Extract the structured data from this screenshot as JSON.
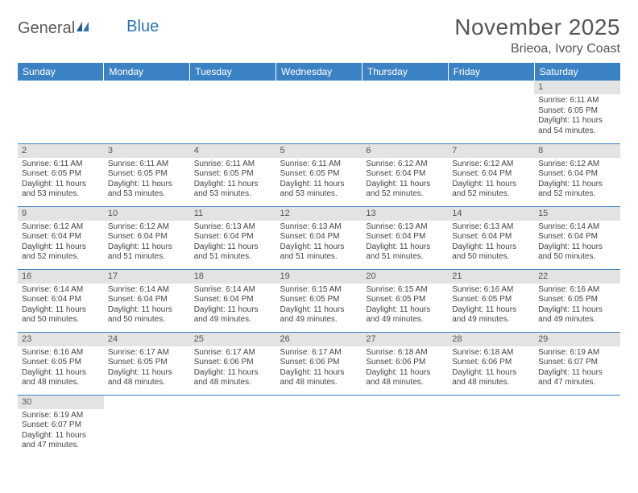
{
  "logo": {
    "word1": "General",
    "word2": "Blue"
  },
  "title": "November 2025",
  "location": "Brieoa, Ivory Coast",
  "colors": {
    "header_bg": "#3b82c4",
    "header_text": "#ffffff",
    "daynum_bg": "#e3e3e3",
    "border": "#3b82c4",
    "title_text": "#555555",
    "body_text": "#444444",
    "logo_gray": "#5a5a5a",
    "logo_blue": "#2b74b8"
  },
  "calendar": {
    "weekdays": [
      "Sunday",
      "Monday",
      "Tuesday",
      "Wednesday",
      "Thursday",
      "Friday",
      "Saturday"
    ],
    "first_weekday_index": 6,
    "days": [
      {
        "n": 1,
        "sunrise": "6:11 AM",
        "sunset": "6:05 PM",
        "daylight": "11 hours and 54 minutes."
      },
      {
        "n": 2,
        "sunrise": "6:11 AM",
        "sunset": "6:05 PM",
        "daylight": "11 hours and 53 minutes."
      },
      {
        "n": 3,
        "sunrise": "6:11 AM",
        "sunset": "6:05 PM",
        "daylight": "11 hours and 53 minutes."
      },
      {
        "n": 4,
        "sunrise": "6:11 AM",
        "sunset": "6:05 PM",
        "daylight": "11 hours and 53 minutes."
      },
      {
        "n": 5,
        "sunrise": "6:11 AM",
        "sunset": "6:05 PM",
        "daylight": "11 hours and 53 minutes."
      },
      {
        "n": 6,
        "sunrise": "6:12 AM",
        "sunset": "6:04 PM",
        "daylight": "11 hours and 52 minutes."
      },
      {
        "n": 7,
        "sunrise": "6:12 AM",
        "sunset": "6:04 PM",
        "daylight": "11 hours and 52 minutes."
      },
      {
        "n": 8,
        "sunrise": "6:12 AM",
        "sunset": "6:04 PM",
        "daylight": "11 hours and 52 minutes."
      },
      {
        "n": 9,
        "sunrise": "6:12 AM",
        "sunset": "6:04 PM",
        "daylight": "11 hours and 52 minutes."
      },
      {
        "n": 10,
        "sunrise": "6:12 AM",
        "sunset": "6:04 PM",
        "daylight": "11 hours and 51 minutes."
      },
      {
        "n": 11,
        "sunrise": "6:13 AM",
        "sunset": "6:04 PM",
        "daylight": "11 hours and 51 minutes."
      },
      {
        "n": 12,
        "sunrise": "6:13 AM",
        "sunset": "6:04 PM",
        "daylight": "11 hours and 51 minutes."
      },
      {
        "n": 13,
        "sunrise": "6:13 AM",
        "sunset": "6:04 PM",
        "daylight": "11 hours and 51 minutes."
      },
      {
        "n": 14,
        "sunrise": "6:13 AM",
        "sunset": "6:04 PM",
        "daylight": "11 hours and 50 minutes."
      },
      {
        "n": 15,
        "sunrise": "6:14 AM",
        "sunset": "6:04 PM",
        "daylight": "11 hours and 50 minutes."
      },
      {
        "n": 16,
        "sunrise": "6:14 AM",
        "sunset": "6:04 PM",
        "daylight": "11 hours and 50 minutes."
      },
      {
        "n": 17,
        "sunrise": "6:14 AM",
        "sunset": "6:04 PM",
        "daylight": "11 hours and 50 minutes."
      },
      {
        "n": 18,
        "sunrise": "6:14 AM",
        "sunset": "6:04 PM",
        "daylight": "11 hours and 49 minutes."
      },
      {
        "n": 19,
        "sunrise": "6:15 AM",
        "sunset": "6:05 PM",
        "daylight": "11 hours and 49 minutes."
      },
      {
        "n": 20,
        "sunrise": "6:15 AM",
        "sunset": "6:05 PM",
        "daylight": "11 hours and 49 minutes."
      },
      {
        "n": 21,
        "sunrise": "6:16 AM",
        "sunset": "6:05 PM",
        "daylight": "11 hours and 49 minutes."
      },
      {
        "n": 22,
        "sunrise": "6:16 AM",
        "sunset": "6:05 PM",
        "daylight": "11 hours and 49 minutes."
      },
      {
        "n": 23,
        "sunrise": "6:16 AM",
        "sunset": "6:05 PM",
        "daylight": "11 hours and 48 minutes."
      },
      {
        "n": 24,
        "sunrise": "6:17 AM",
        "sunset": "6:05 PM",
        "daylight": "11 hours and 48 minutes."
      },
      {
        "n": 25,
        "sunrise": "6:17 AM",
        "sunset": "6:06 PM",
        "daylight": "11 hours and 48 minutes."
      },
      {
        "n": 26,
        "sunrise": "6:17 AM",
        "sunset": "6:06 PM",
        "daylight": "11 hours and 48 minutes."
      },
      {
        "n": 27,
        "sunrise": "6:18 AM",
        "sunset": "6:06 PM",
        "daylight": "11 hours and 48 minutes."
      },
      {
        "n": 28,
        "sunrise": "6:18 AM",
        "sunset": "6:06 PM",
        "daylight": "11 hours and 48 minutes."
      },
      {
        "n": 29,
        "sunrise": "6:19 AM",
        "sunset": "6:07 PM",
        "daylight": "11 hours and 47 minutes."
      },
      {
        "n": 30,
        "sunrise": "6:19 AM",
        "sunset": "6:07 PM",
        "daylight": "11 hours and 47 minutes."
      }
    ],
    "labels": {
      "sunrise": "Sunrise:",
      "sunset": "Sunset:",
      "daylight": "Daylight:"
    }
  }
}
